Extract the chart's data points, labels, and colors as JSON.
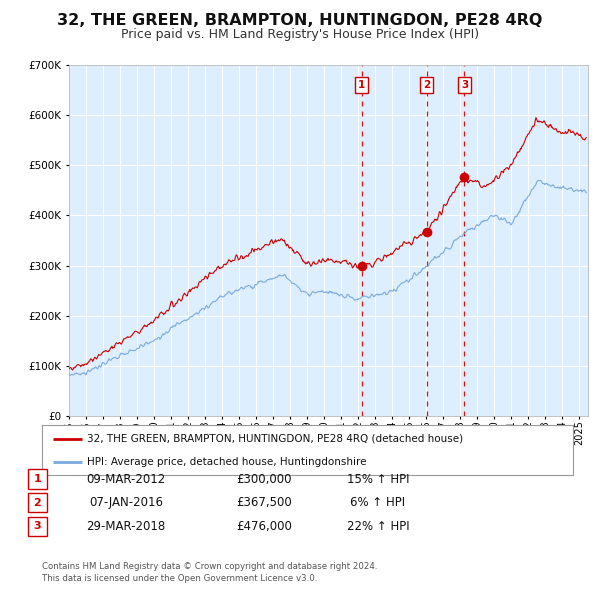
{
  "title": "32, THE GREEN, BRAMPTON, HUNTINGDON, PE28 4RQ",
  "subtitle": "Price paid vs. HM Land Registry's House Price Index (HPI)",
  "title_fontsize": 11.5,
  "subtitle_fontsize": 9,
  "background_color": "#ffffff",
  "plot_bg_color": "#ddeeff",
  "grid_color": "#ffffff",
  "red_line_label": "32, THE GREEN, BRAMPTON, HUNTINGDON, PE28 4RQ (detached house)",
  "blue_line_label": "HPI: Average price, detached house, Huntingdonshire",
  "transactions": [
    {
      "num": 1,
      "date": "09-MAR-2012",
      "price": "£300,000",
      "x_year": 2012.19,
      "y_val": 300000,
      "hpi_pct": "15% ↑ HPI"
    },
    {
      "num": 2,
      "date": "07-JAN-2016",
      "price": "£367,500",
      "x_year": 2016.02,
      "y_val": 367500,
      "hpi_pct": "6% ↑ HPI"
    },
    {
      "num": 3,
      "date": "29-MAR-2018",
      "price": "£476,000",
      "x_year": 2018.24,
      "y_val": 476000,
      "hpi_pct": "22% ↑ HPI"
    }
  ],
  "vline_color": "#cc0000",
  "dot_color": "#cc0000",
  "ylim": [
    0,
    700000
  ],
  "xlim": [
    1995.0,
    2025.5
  ],
  "yticks": [
    0,
    100000,
    200000,
    300000,
    400000,
    500000,
    600000,
    700000
  ],
  "ytick_labels": [
    "£0",
    "£100K",
    "£200K",
    "£300K",
    "£400K",
    "£500K",
    "£600K",
    "£700K"
  ],
  "xticks": [
    1995,
    1996,
    1997,
    1998,
    1999,
    2000,
    2001,
    2002,
    2003,
    2004,
    2005,
    2006,
    2007,
    2008,
    2009,
    2010,
    2011,
    2012,
    2013,
    2014,
    2015,
    2016,
    2017,
    2018,
    2019,
    2020,
    2021,
    2022,
    2023,
    2024,
    2025
  ],
  "footnote": "Contains HM Land Registry data © Crown copyright and database right 2024.\nThis data is licensed under the Open Government Licence v3.0.",
  "red_color": "#cc0000",
  "blue_color": "#7aaadd"
}
